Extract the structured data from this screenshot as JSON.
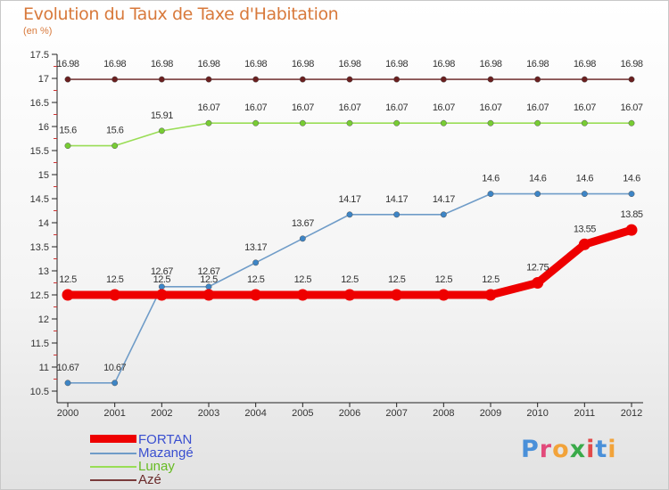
{
  "title": "Evolution du Taux de Taxe d'Habitation",
  "subtitle": "(en %)",
  "logo": {
    "text": "Proxiti",
    "colors": [
      "#4a90d9",
      "#e24a7b",
      "#f2a33a",
      "#3aaa4a",
      "#e24a4a",
      "#4a90d9",
      "#f2a33a"
    ]
  },
  "chart_data": {
    "type": "line",
    "title": "Evolution du Taux de Taxe d'Habitation",
    "ylabel": "(en %)",
    "xlabel": "",
    "x": [
      "2000",
      "2001",
      "2002",
      "2003",
      "2004",
      "2005",
      "2006",
      "2007",
      "2008",
      "2009",
      "2010",
      "2011",
      "2012"
    ],
    "ylim": [
      10.5,
      17.5
    ],
    "yticks": [
      "10.5",
      "11",
      "11.5",
      "12",
      "12.5",
      "13",
      "13.5",
      "14",
      "14.5",
      "15",
      "15.5",
      "16",
      "16.5",
      "17",
      "17.5"
    ],
    "grid": false,
    "legend_position": "bottom-left",
    "series": [
      {
        "name": "FORTAN",
        "color": "#ee0000",
        "marker_color": "#ee0000",
        "thick": true,
        "values": [
          12.5,
          12.5,
          12.5,
          12.5,
          12.5,
          12.5,
          12.5,
          12.5,
          12.5,
          12.5,
          12.75,
          13.55,
          13.85
        ],
        "labels": [
          "12.5",
          "12.5",
          "12.5",
          "12.5",
          "12.5",
          "12.5",
          "12.5",
          "12.5",
          "12.5",
          "12.5",
          "12.75",
          "13.55",
          "13.85"
        ]
      },
      {
        "name": "Mazangé",
        "color": "#6f9cc8",
        "marker_color": "#3d85c6",
        "thick": false,
        "values": [
          10.67,
          10.67,
          12.67,
          12.67,
          13.17,
          13.67,
          14.17,
          14.17,
          14.17,
          14.6,
          14.6,
          14.6,
          14.6
        ],
        "labels": [
          "10.67",
          "10.67",
          "12.67",
          "12.67",
          "13.17",
          "13.67",
          "14.17",
          "14.17",
          "14.17",
          "14.6",
          "14.6",
          "14.6",
          "14.6"
        ]
      },
      {
        "name": "Lunay",
        "color": "#99dd55",
        "marker_color": "#77cc33",
        "thick": false,
        "values": [
          15.6,
          15.6,
          15.91,
          16.07,
          16.07,
          16.07,
          16.07,
          16.07,
          16.07,
          16.07,
          16.07,
          16.07,
          16.07
        ],
        "labels": [
          "15.6",
          "15.6",
          "15.91",
          "16.07",
          "16.07",
          "16.07",
          "16.07",
          "16.07",
          "16.07",
          "16.07",
          "16.07",
          "16.07",
          "16.07"
        ]
      },
      {
        "name": "Azé",
        "color": "#7a3b3b",
        "marker_color": "#6a1f1f",
        "thick": false,
        "values": [
          16.98,
          16.98,
          16.98,
          16.98,
          16.98,
          16.98,
          16.98,
          16.98,
          16.98,
          16.98,
          16.98,
          16.98,
          16.98
        ],
        "labels": [
          "16.98",
          "16.98",
          "16.98",
          "16.98",
          "16.98",
          "16.98",
          "16.98",
          "16.98",
          "16.98",
          "16.98",
          "16.98",
          "16.98",
          "16.98"
        ]
      }
    ]
  }
}
